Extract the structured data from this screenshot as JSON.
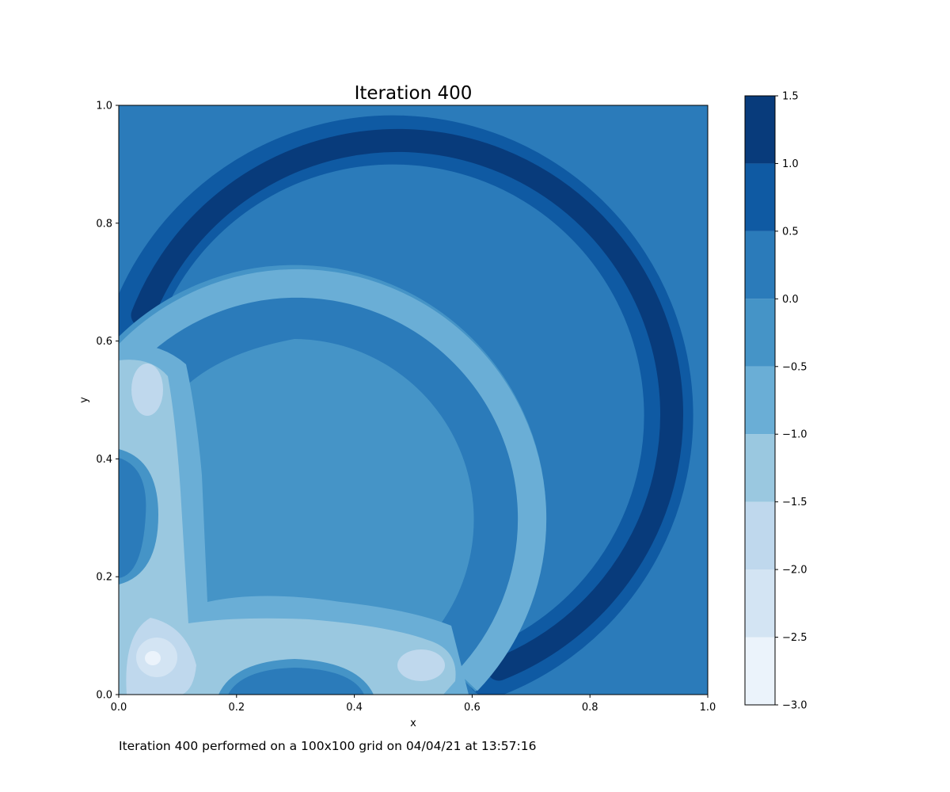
{
  "chart_data": {
    "type": "contourf",
    "title": "Iteration 400",
    "xlabel": "x",
    "ylabel": "y",
    "xlim": [
      0.0,
      1.0
    ],
    "ylim": [
      0.0,
      1.0
    ],
    "x_ticks": [
      "0.0",
      "0.2",
      "0.4",
      "0.6",
      "0.8",
      "1.0"
    ],
    "y_ticks": [
      "0.0",
      "0.2",
      "0.4",
      "0.6",
      "0.8",
      "1.0"
    ],
    "grid": false,
    "background_level": "0.0 to 0.5",
    "colorbar": {
      "levels": [
        -3.0,
        -2.5,
        -2.0,
        -1.5,
        -1.0,
        -0.5,
        0.0,
        0.5,
        1.0,
        1.5
      ],
      "tick_labels": [
        "−3.0",
        "−2.5",
        "−2.0",
        "−1.5",
        "−1.0",
        "−0.5",
        "0.0",
        "0.5",
        "1.0",
        "1.5"
      ],
      "colors": [
        "#ebf3fb",
        "#d3e4f3",
        "#bfd8ed",
        "#9ac8e0",
        "#6aaed6",
        "#4594c7",
        "#2b7bba",
        "#0f5aa3",
        "#083b7b"
      ],
      "colormap": "Blues"
    },
    "features": [
      {
        "shape": "circular arc",
        "center": [
          0.3,
          0.3
        ],
        "radius": 0.44,
        "angular_range_deg": [
          -70,
          110
        ],
        "band_levels": [
          "0.5 to 1.0",
          "1.0 to 1.5"
        ]
      },
      {
        "shape": "circular arc trough",
        "center": [
          0.3,
          0.3
        ],
        "radius": 0.34,
        "band_levels": [
          "-1.0 to -0.5",
          "-0.5 to 0.0"
        ]
      },
      {
        "shape": "disk interior",
        "center": [
          0.3,
          0.3
        ],
        "level": "-0.5 to 0.0"
      },
      {
        "shape": "L-shaped trough",
        "along": [
          "x = 0.06",
          "y = 0.07"
        ],
        "band_levels": [
          "-1.5 to -1.0",
          "-2.0 to -1.5",
          "-2.5 to -2.0",
          "-3.0 to -2.5"
        ]
      },
      {
        "shape": "local minimum",
        "x": 0.06,
        "y": 0.06,
        "level": "-3.0 to -2.5"
      },
      {
        "shape": "local minimum",
        "x": 0.05,
        "y": 0.51,
        "level": "-2.0 to -1.5"
      },
      {
        "shape": "local minimum",
        "x": 0.52,
        "y": 0.06,
        "level": "-2.0 to -1.5"
      },
      {
        "shape": "boundary bump",
        "x": 0.0,
        "y": 0.3,
        "level": "0.0 to 0.5"
      },
      {
        "shape": "boundary bump",
        "x": 0.3,
        "y": 0.0,
        "level": "0.0 to 0.5"
      }
    ]
  },
  "caption": "Iteration 400 performed on a 100x100 grid on 04/04/21 at 13:57:16"
}
